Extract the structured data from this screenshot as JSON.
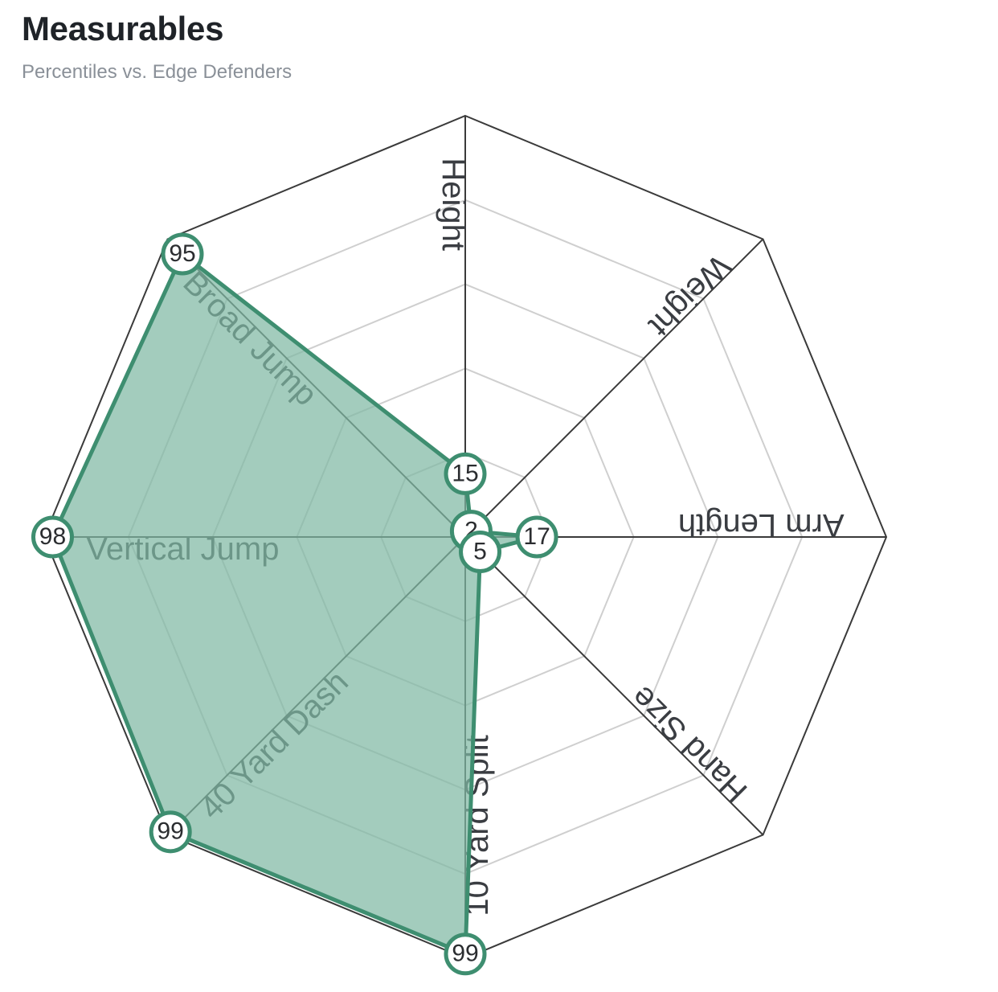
{
  "header": {
    "title": "Measurables",
    "subtitle": "Percentiles vs. Edge Defenders"
  },
  "chart_data": {
    "type": "radar",
    "title": "Measurables",
    "subtitle": "Percentiles vs. Edge Defenders",
    "range": [
      0,
      100
    ],
    "rings": 5,
    "grid": true,
    "categories": [
      "Height",
      "Weight",
      "Arm Length",
      "Hand Size",
      "10 Yard Split",
      "40 Yard Dash",
      "Vertical Jump",
      "Broad Jump"
    ],
    "values": [
      15,
      2,
      17,
      5,
      99,
      99,
      98,
      95
    ],
    "value_labels": [
      "15",
      "2",
      "17",
      "5",
      "99",
      "99",
      "98",
      "95"
    ],
    "colors": {
      "fill": "#7fb8a3",
      "stroke": "#3e8e70",
      "outline": "#3a3a3a",
      "grid": "#cfcfcf"
    }
  }
}
